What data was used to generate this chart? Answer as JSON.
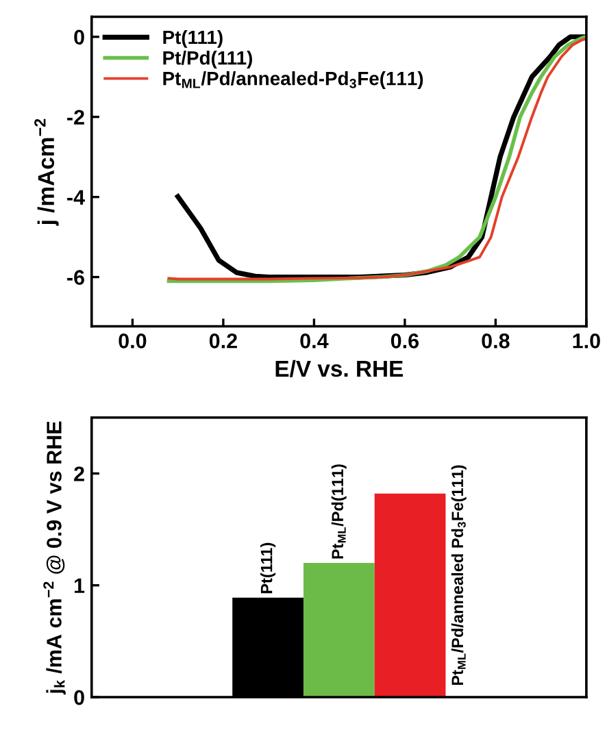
{
  "chart_data": [
    {
      "type": "line",
      "xlabel": "E/V vs. RHE",
      "ylabel": "j /mAcm$^{−2}$",
      "xlim": [
        -0.09,
        1.0
      ],
      "ylim": [
        -7.23,
        0.5
      ],
      "xticks": [
        {
          "value": 0,
          "label": "0.0"
        },
        0.2,
        0.4,
        0.6,
        0.8,
        {
          "value": 1,
          "label": "1.0"
        }
      ],
      "yticks": [
        0,
        -2,
        -4,
        -6
      ],
      "legend": "top left",
      "grid": false,
      "series": [
        {
          "name": "Pt(111)",
          "color": "#000000",
          "x": [
            0.1,
            0.15,
            0.19,
            0.23,
            0.27,
            0.3,
            0.4,
            0.5,
            0.6,
            0.65,
            0.7,
            0.74,
            0.77,
            0.79,
            0.81,
            0.84,
            0.86,
            0.88,
            0.92,
            0.94,
            0.965,
            1.0
          ],
          "values": [
            -3.99,
            -4.78,
            -5.58,
            -5.89,
            -5.98,
            -6.0,
            -6.0,
            -6.0,
            -5.95,
            -5.88,
            -5.75,
            -5.5,
            -5.0,
            -4.0,
            -3.0,
            -2.0,
            -1.5,
            -1.0,
            -0.5,
            -0.2,
            0.0,
            0.0
          ]
        },
        {
          "name": "Pt/Pd(111)",
          "color": "#6abf4b",
          "x": [
            0.08,
            0.1,
            0.2,
            0.3,
            0.4,
            0.45,
            0.5,
            0.55,
            0.6,
            0.65,
            0.69,
            0.72,
            0.765,
            0.8,
            0.83,
            0.854,
            0.88,
            0.9,
            0.93,
            0.96,
            0.99,
            1.0
          ],
          "values": [
            -6.1,
            -6.1,
            -6.1,
            -6.1,
            -6.08,
            -6.05,
            -6.02,
            -6.0,
            -5.95,
            -5.85,
            -5.7,
            -5.5,
            -5.0,
            -4.0,
            -3.0,
            -2.0,
            -1.4,
            -1.0,
            -0.5,
            -0.2,
            -0.03,
            0.0
          ]
        },
        {
          "name": "Pt$_{ML}$/Pd/annealed-Pd$_{3}$Fe(111)",
          "color": "#e3402b",
          "x": [
            0.08,
            0.1,
            0.2,
            0.3,
            0.4,
            0.5,
            0.55,
            0.6,
            0.65,
            0.7,
            0.74,
            0.765,
            0.79,
            0.814,
            0.85,
            0.88,
            0.9,
            0.915,
            0.945,
            0.97,
            0.99,
            1.0
          ],
          "values": [
            -6.03,
            -6.05,
            -6.05,
            -6.05,
            -6.03,
            -6.02,
            -6.0,
            -5.95,
            -5.85,
            -5.75,
            -5.6,
            -5.5,
            -5.0,
            -4.0,
            -3.0,
            -2.0,
            -1.4,
            -1.0,
            -0.5,
            -0.2,
            -0.08,
            -0.05
          ]
        }
      ]
    },
    {
      "type": "bar",
      "ylabel": "j$_{k}$ /mA cm$^{−2}$ @ 0.9 V vs RHE",
      "categories": [
        "Pt(111)",
        "Pt$_{ML}$/Pd(111)",
        "Pt$_{ML}$/Pd/annealed Pd$_{3}$Fe(111)"
      ],
      "values": [
        0.89,
        1.2,
        1.82
      ],
      "colors": [
        "#000000",
        "#6cbb48",
        "#e81f25"
      ],
      "ylim": [
        0,
        2.5
      ],
      "yticks": [
        0,
        1,
        2
      ],
      "tick_labels": "y",
      "grid": false
    }
  ]
}
